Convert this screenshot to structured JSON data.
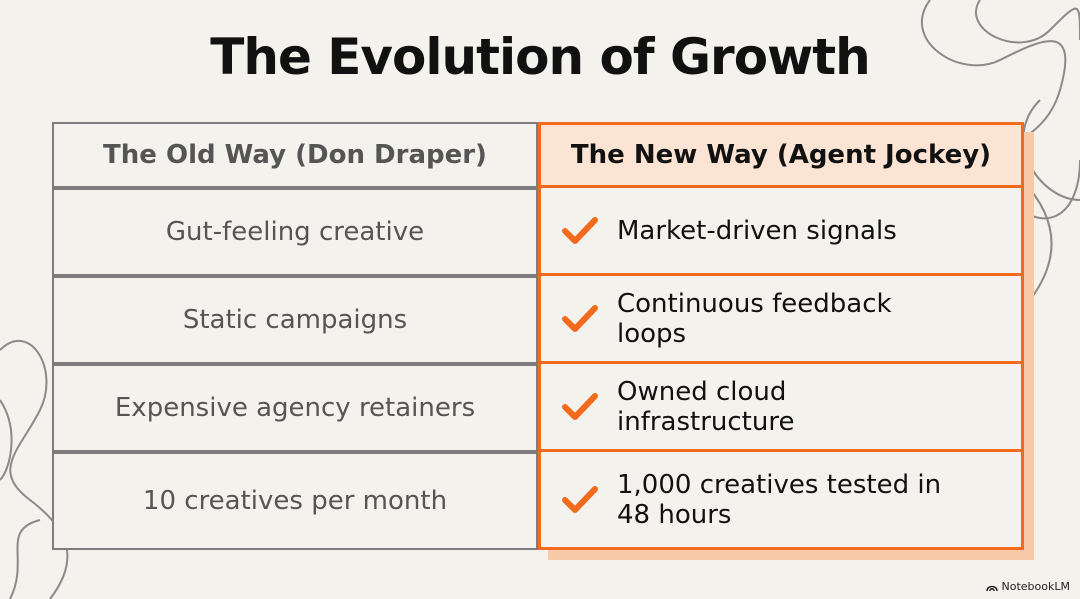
{
  "header": {
    "title": "The Evolution of Growth"
  },
  "table": {
    "columns": [
      "The Old Way (Don Draper)",
      "The New Way (Agent Jockey)"
    ],
    "rows": [
      [
        "Gut-feeling creative",
        "Market-driven signals"
      ],
      [
        "Static campaigns",
        "Continuous feedback loops"
      ],
      [
        "Expensive agency retainers",
        "Owned cloud infrastructure"
      ],
      [
        "10 creatives per month",
        "1,000 creatives tested in 48 hours"
      ]
    ]
  },
  "footer": {
    "brand": "NotebookLM"
  }
}
